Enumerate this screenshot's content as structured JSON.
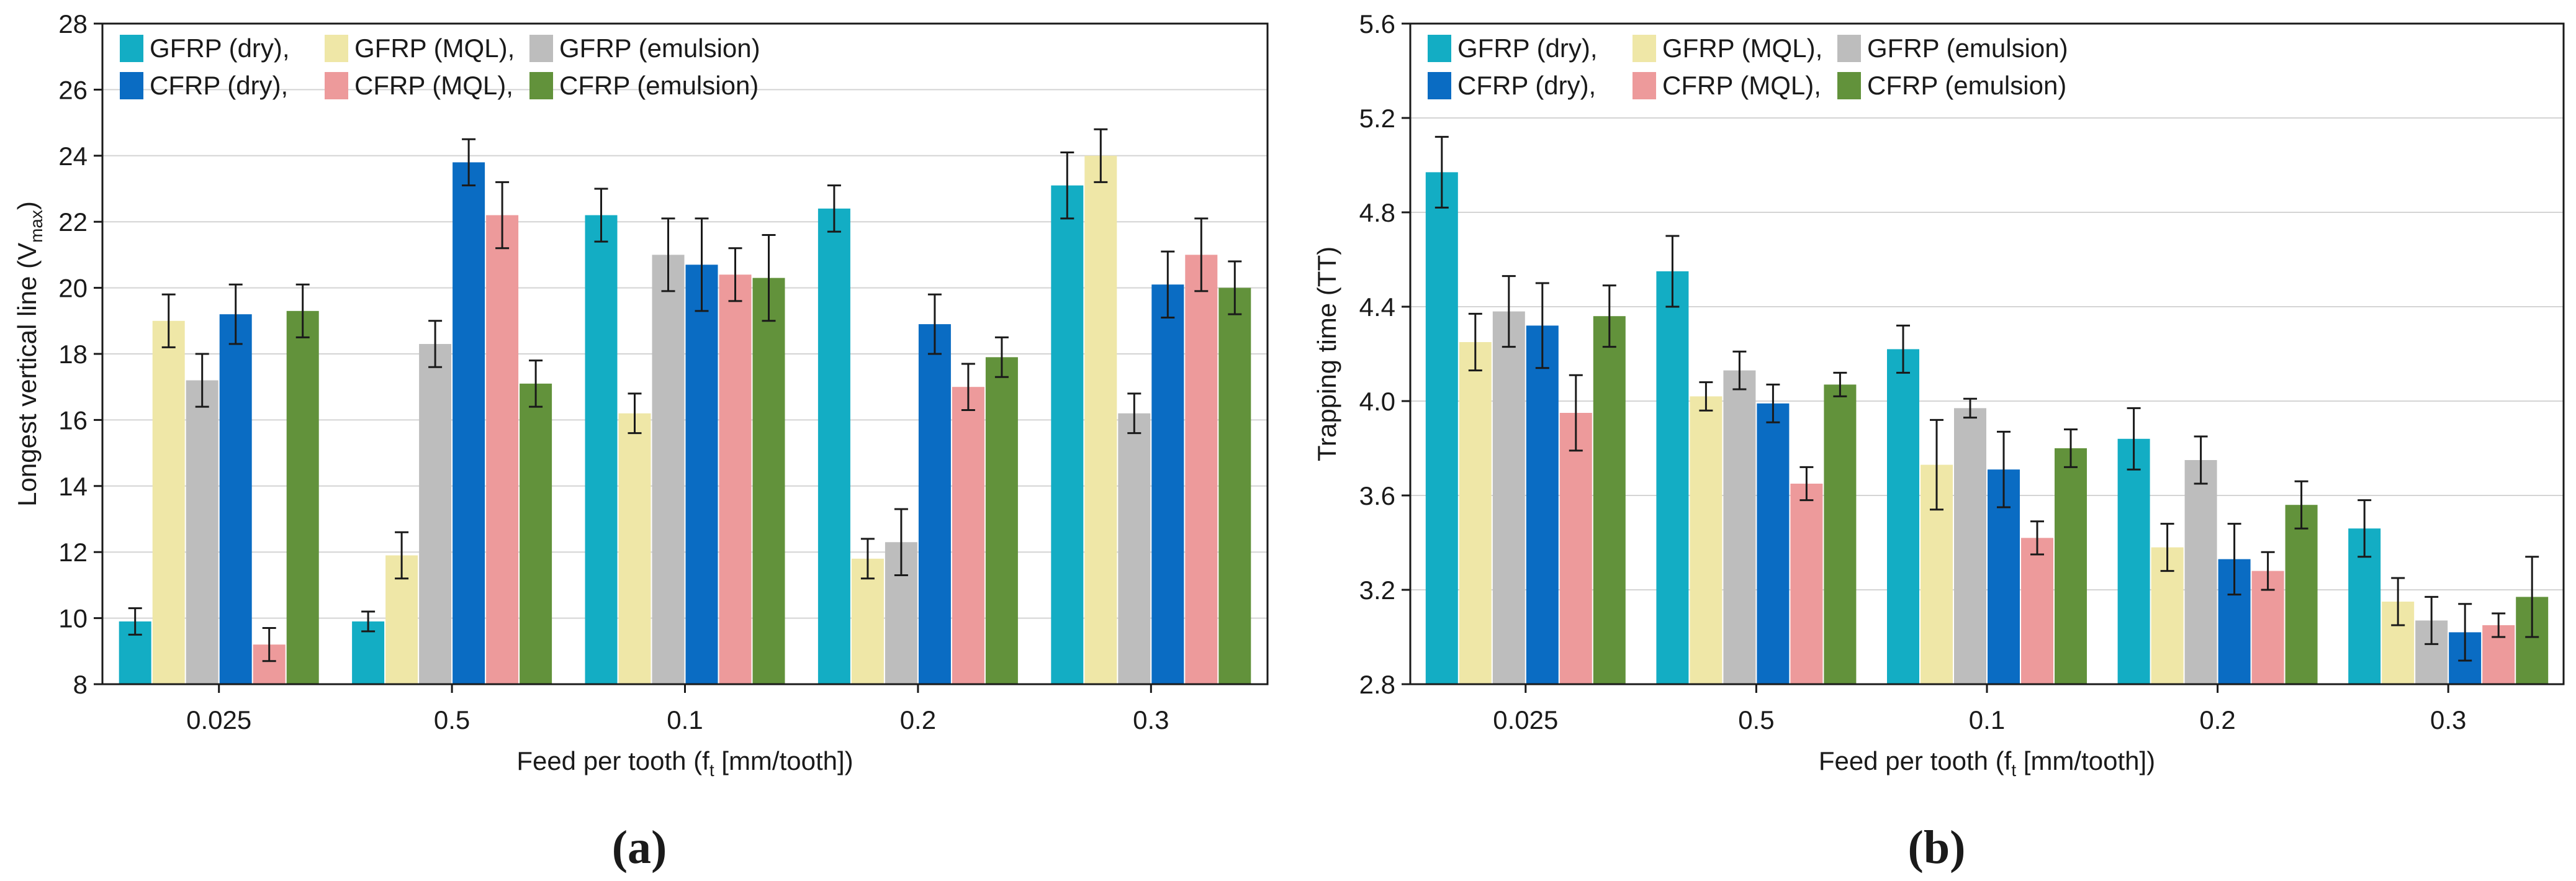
{
  "series_colors": [
    "#13adc4",
    "#efe7a7",
    "#bdbdbd",
    "#0a6cc3",
    "#ed9a9b",
    "#62923b"
  ],
  "chart_data": [
    {
      "type": "bar",
      "panel_label": "(a)",
      "categories": [
        "0.025",
        "0.5",
        "0.1",
        "0.2",
        "0.3"
      ],
      "xlabel": "Feed per tooth (f",
      "xlabel_sub": "t",
      "xlabel_tail": " [mm/tooth])",
      "ylabel": "Longest vertical line (V",
      "ylabel_sub": "max",
      "ylabel_tail": ")",
      "ylim": [
        8,
        28
      ],
      "yticks": [
        "8",
        "10",
        "12",
        "14",
        "16",
        "18",
        "20",
        "22",
        "24",
        "26",
        "28"
      ],
      "grid": true,
      "legend": "top-left",
      "series": [
        {
          "name": "GFRP (dry),",
          "values": [
            9.9,
            9.9,
            22.2,
            22.4,
            23.1
          ],
          "errors": [
            0.4,
            0.3,
            0.8,
            0.7,
            1.0
          ]
        },
        {
          "name": "GFRP (MQL),",
          "values": [
            19.0,
            11.9,
            16.2,
            11.8,
            24.0
          ],
          "errors": [
            0.8,
            0.7,
            0.6,
            0.6,
            0.8
          ]
        },
        {
          "name": "GFRP (emulsion)",
          "values": [
            17.2,
            18.3,
            21.0,
            12.3,
            16.2
          ],
          "errors": [
            0.8,
            0.7,
            1.1,
            1.0,
            0.6
          ]
        },
        {
          "name": "CFRP (dry),",
          "values": [
            19.2,
            23.8,
            20.7,
            18.9,
            20.1
          ],
          "errors": [
            0.9,
            0.7,
            1.4,
            0.9,
            1.0
          ]
        },
        {
          "name": "CFRP (MQL),",
          "values": [
            9.2,
            22.2,
            20.4,
            17.0,
            21.0
          ],
          "errors": [
            0.5,
            1.0,
            0.8,
            0.7,
            1.1
          ]
        },
        {
          "name": "CFRP (emulsion)",
          "values": [
            19.3,
            17.1,
            20.3,
            17.9,
            20.0
          ],
          "errors": [
            0.8,
            0.7,
            1.3,
            0.6,
            0.8
          ]
        }
      ]
    },
    {
      "type": "bar",
      "panel_label": "(b)",
      "categories": [
        "0.025",
        "0.5",
        "0.1",
        "0.2",
        "0.3"
      ],
      "xlabel": "Feed per tooth (f",
      "xlabel_sub": "t",
      "xlabel_tail": " [mm/tooth])",
      "ylabel": "Trapping time (TT)",
      "ylabel_sub": "",
      "ylabel_tail": "",
      "ylim": [
        2.8,
        5.6
      ],
      "yticks": [
        "2.8",
        "3.2",
        "3.6",
        "4.0",
        "4.4",
        "4.8",
        "5.2",
        "5.6"
      ],
      "grid": true,
      "legend": "top-left",
      "series": [
        {
          "name": "GFRP (dry),",
          "values": [
            4.97,
            4.55,
            4.22,
            3.84,
            3.46
          ],
          "errors": [
            0.15,
            0.15,
            0.1,
            0.13,
            0.12
          ]
        },
        {
          "name": "GFRP (MQL),",
          "values": [
            4.25,
            4.02,
            3.73,
            3.38,
            3.15
          ],
          "errors": [
            0.12,
            0.06,
            0.19,
            0.1,
            0.1
          ]
        },
        {
          "name": "GFRP (emulsion)",
          "values": [
            4.38,
            4.13,
            3.97,
            3.75,
            3.07
          ],
          "errors": [
            0.15,
            0.08,
            0.04,
            0.1,
            0.1
          ]
        },
        {
          "name": "CFRP (dry),",
          "values": [
            4.32,
            3.99,
            3.71,
            3.33,
            3.02
          ],
          "errors": [
            0.18,
            0.08,
            0.16,
            0.15,
            0.12
          ]
        },
        {
          "name": "CFRP (MQL),",
          "values": [
            3.95,
            3.65,
            3.42,
            3.28,
            3.05
          ],
          "errors": [
            0.16,
            0.07,
            0.07,
            0.08,
            0.05
          ]
        },
        {
          "name": "CFRP (emulsion)",
          "values": [
            4.36,
            4.07,
            3.8,
            3.56,
            3.17
          ],
          "errors": [
            0.13,
            0.05,
            0.08,
            0.1,
            0.17
          ]
        }
      ]
    }
  ]
}
